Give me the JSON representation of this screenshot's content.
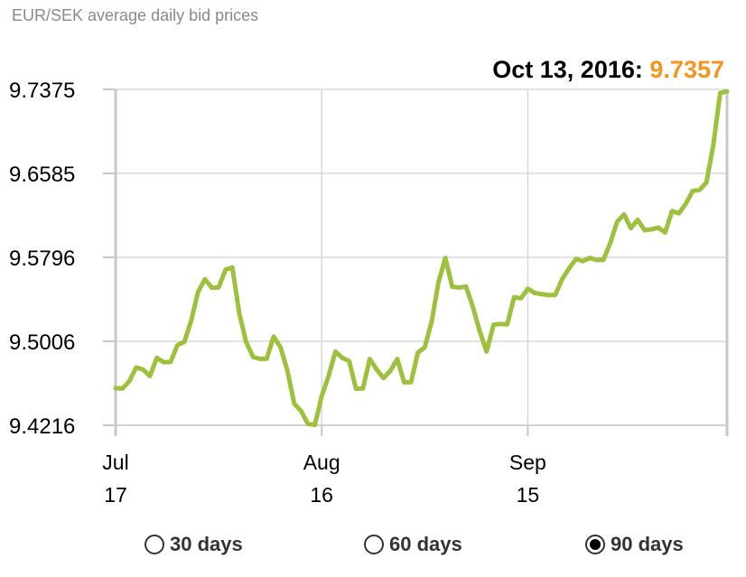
{
  "title": "EUR/SEK average daily bid prices",
  "readout": {
    "date": "Oct 13, 2016",
    "separator": ":",
    "value": "9.7357"
  },
  "colors": {
    "line": "#9dc13c",
    "value": "#f7941d",
    "grid": "#d9d9d9",
    "axis": "#c8c8c8"
  },
  "options": [
    {
      "label": "30 days",
      "selected": false
    },
    {
      "label": "60 days",
      "selected": false
    },
    {
      "label": "90 days",
      "selected": true
    }
  ],
  "chart_data": {
    "type": "line",
    "title": "EUR/SEK average daily bid prices",
    "ylim": [
      9.4216,
      9.7375
    ],
    "y_ticks": [
      "9.7375",
      "9.6585",
      "9.5796",
      "9.5006",
      "9.4216"
    ],
    "x_ticks": [
      {
        "line1": "Jul",
        "line2": "17",
        "day": 0
      },
      {
        "line1": "Aug",
        "line2": "16",
        "day": 30
      },
      {
        "line1": "Sep",
        "line2": "15",
        "day": 60
      }
    ],
    "grid": true,
    "x": [
      0,
      1,
      2,
      3,
      4,
      5,
      6,
      7,
      8,
      9,
      10,
      11,
      12,
      13,
      14,
      15,
      16,
      17,
      18,
      19,
      20,
      21,
      22,
      23,
      24,
      25,
      26,
      27,
      28,
      29,
      30,
      31,
      32,
      33,
      34,
      35,
      36,
      37,
      38,
      39,
      40,
      41,
      42,
      43,
      44,
      45,
      46,
      47,
      48,
      49,
      50,
      51,
      52,
      53,
      54,
      55,
      56,
      57,
      58,
      59,
      60,
      61,
      62,
      63,
      64,
      65,
      66,
      67,
      68,
      69,
      70,
      71,
      72,
      73,
      74,
      75,
      76,
      77,
      78,
      79,
      80,
      81,
      82,
      83,
      84,
      85,
      86,
      87,
      88,
      89
    ],
    "values": [
      9.4565,
      9.4562,
      9.463,
      9.476,
      9.474,
      9.468,
      9.485,
      9.481,
      9.4812,
      9.497,
      9.5,
      9.52,
      9.547,
      9.559,
      9.551,
      9.5512,
      9.568,
      9.57,
      9.527,
      9.5,
      9.486,
      9.484,
      9.4842,
      9.505,
      9.495,
      9.473,
      9.442,
      9.435,
      9.423,
      9.422,
      9.449,
      9.468,
      9.491,
      9.485,
      9.482,
      9.456,
      9.4562,
      9.484,
      9.474,
      9.466,
      9.473,
      9.484,
      9.462,
      9.4622,
      9.49,
      9.495,
      9.519,
      9.556,
      9.579,
      9.552,
      9.551,
      9.5522,
      9.533,
      9.51,
      9.491,
      9.516,
      9.517,
      9.5165,
      9.542,
      9.541,
      9.55,
      9.546,
      9.545,
      9.544,
      9.5442,
      9.559,
      9.569,
      9.578,
      9.576,
      9.579,
      9.577,
      9.5772,
      9.593,
      9.613,
      9.62,
      9.607,
      9.615,
      9.605,
      9.606,
      9.6075,
      9.603,
      9.623,
      9.621,
      9.63,
      9.642,
      9.643,
      9.65,
      9.685,
      9.734,
      9.7357
    ],
    "last_point": {
      "date": "Oct 13, 2016",
      "value": 9.7357
    }
  }
}
